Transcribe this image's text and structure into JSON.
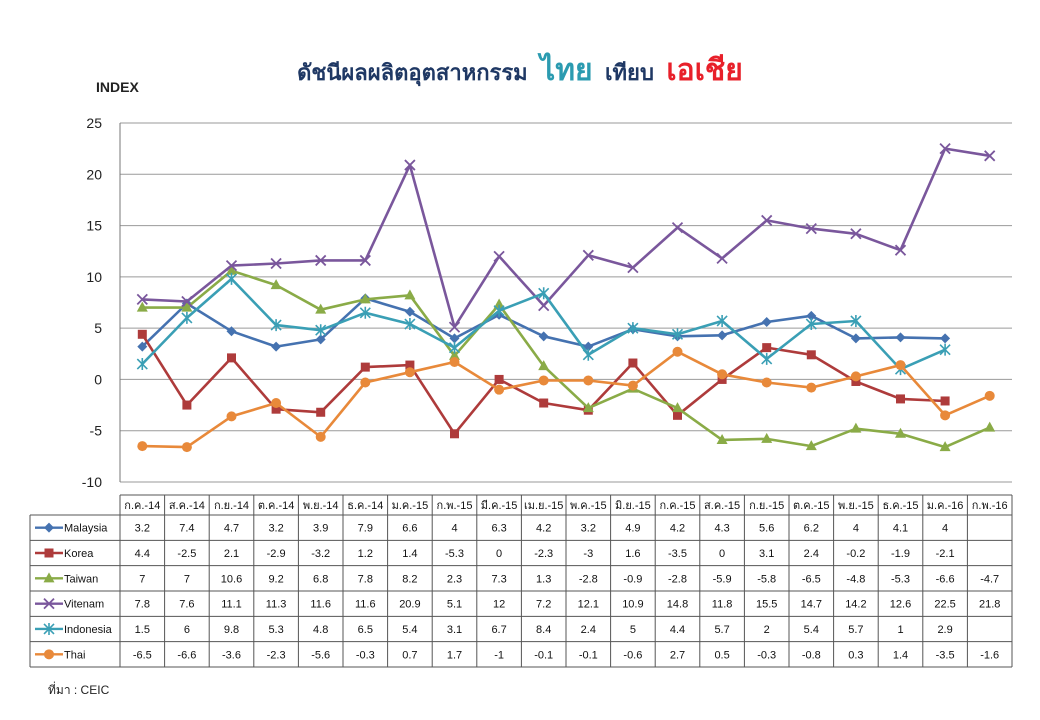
{
  "source": "ที่มา : CEIC",
  "chart_data": {
    "type": "line",
    "title_parts": [
      "ดัชนีผลผลิตอุตสาหกรรม",
      "ไทย",
      "เทียบ",
      "เอเชีย"
    ],
    "ylabel": "INDEX",
    "ylim": [
      -10,
      25
    ],
    "yticks": [
      -10,
      -5,
      0,
      5,
      10,
      15,
      20,
      25
    ],
    "grid": true,
    "categories": [
      "ก.ค.-14",
      "ส.ค.-14",
      "ก.ย.-14",
      "ต.ค.-14",
      "พ.ย.-14",
      "ธ.ค.-14",
      "ม.ค.-15",
      "ก.พ.-15",
      "มี.ค.-15",
      "เม.ย.-15",
      "พ.ค.-15",
      "มิ.ย.-15",
      "ก.ค.-15",
      "ส.ค.-15",
      "ก.ย.-15",
      "ต.ค.-15",
      "พ.ย.-15",
      "ธ.ค.-15",
      "ม.ค.-16",
      "ก.พ.-16"
    ],
    "series": [
      {
        "name": "Malaysia",
        "color": "#4572b0",
        "marker": "diamond",
        "values": [
          3.2,
          7.4,
          4.7,
          3.2,
          3.9,
          7.9,
          6.6,
          4,
          6.3,
          4.2,
          3.2,
          4.9,
          4.2,
          4.3,
          5.6,
          6.2,
          4,
          4.1,
          4,
          null
        ]
      },
      {
        "name": "Korea",
        "color": "#ae3b3b",
        "marker": "square",
        "values": [
          4.4,
          -2.5,
          2.1,
          -2.9,
          -3.2,
          1.2,
          1.4,
          -5.3,
          0,
          -2.3,
          -3,
          1.6,
          -3.5,
          0,
          3.1,
          2.4,
          -0.2,
          -1.9,
          -2.1,
          null
        ]
      },
      {
        "name": "Taiwan",
        "color": "#8aab47",
        "marker": "triangle",
        "values": [
          7,
          7,
          10.6,
          9.2,
          6.8,
          7.8,
          8.2,
          2.3,
          7.3,
          1.3,
          -2.8,
          -0.9,
          -2.8,
          -5.9,
          -5.8,
          -6.5,
          -4.8,
          -5.3,
          -6.6,
          -4.7
        ]
      },
      {
        "name": "Vitenam",
        "color": "#7a579c",
        "marker": "x",
        "values": [
          7.8,
          7.6,
          11.1,
          11.3,
          11.6,
          11.6,
          20.9,
          5.1,
          12,
          7.2,
          12.1,
          10.9,
          14.8,
          11.8,
          15.5,
          14.7,
          14.2,
          12.6,
          22.5,
          21.8
        ]
      },
      {
        "name": "Indonesia",
        "color": "#3a9fb5",
        "marker": "star",
        "values": [
          1.5,
          6,
          9.8,
          5.3,
          4.8,
          6.5,
          5.4,
          3.1,
          6.7,
          8.4,
          2.4,
          5,
          4.4,
          5.7,
          2,
          5.4,
          5.7,
          1,
          2.9,
          null
        ]
      },
      {
        "name": "Thai",
        "color": "#e8893a",
        "marker": "circle",
        "values": [
          -6.5,
          -6.6,
          -3.6,
          -2.3,
          -5.6,
          -0.3,
          0.7,
          1.7,
          -1,
          -0.1,
          -0.1,
          -0.6,
          2.7,
          0.5,
          -0.3,
          -0.8,
          0.3,
          1.4,
          -3.5,
          -1.6
        ]
      }
    ]
  }
}
